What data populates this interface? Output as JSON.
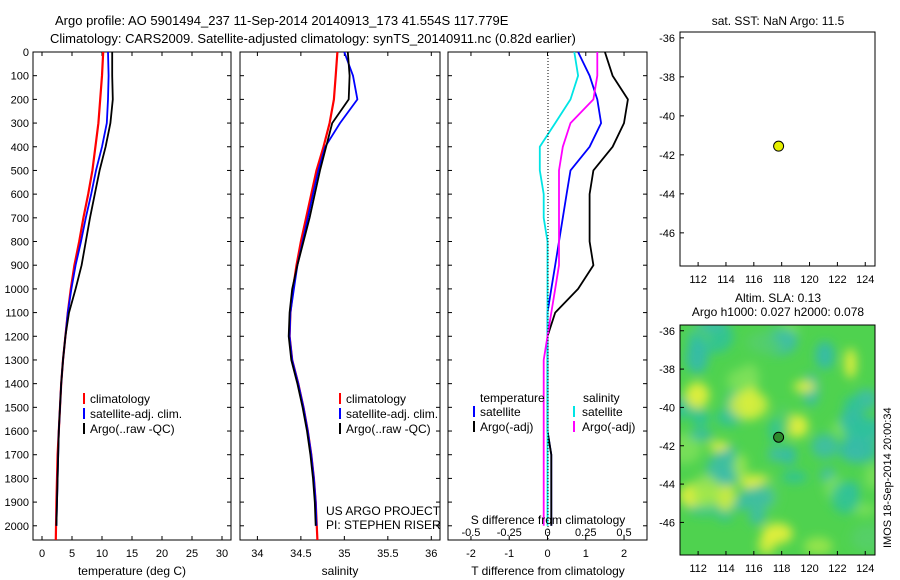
{
  "header": {
    "line1": "Argo profile: AO 5901494_237 11-Sep-2014 20140913_173 41.554S 117.779E",
    "line2": "Climatology: CARS2009. Satellite-adjusted climatology: synTS_20140911.nc (0.82d earlier)"
  },
  "colors": {
    "climatology": "#ff0000",
    "satellite": "#0000ff",
    "argo": "#000000",
    "satellite_s": "#00e5e5",
    "argo_s": "#ff00ff",
    "map_dot": "#e6f000",
    "sla_dot": "#2d8a2d"
  },
  "legend_profile": [
    "climatology",
    "satellite-adj. clim.",
    "Argo(..raw -QC)"
  ],
  "legend_diff": {
    "temperature": "temperature",
    "salinity": "salinity",
    "t_sat": "satellite",
    "t_argo": "Argo(-adj)",
    "s_sat": "satellite",
    "s_argo": "Argo(-adj)"
  },
  "credit": {
    "line1": "US ARGO PROJECT",
    "line2": "PI: STEPHEN RISER"
  },
  "sst_title": "sat. SST: NaN Argo: 11.5",
  "sla_title1": "Altim. SLA: 0.13",
  "sla_title2": "Argo h1000: 0.027 h2000: 0.078",
  "sla_timestamp": "IMOS 18-Sep-2014 20:00:34",
  "chart_data": [
    {
      "type": "line",
      "id": "temperature",
      "xlabel": "temperature (deg C)",
      "ylabel": "",
      "xlim": [
        -1.5,
        31.5
      ],
      "ylim": [
        2060,
        0
      ],
      "y_reversed": true,
      "xticks": [
        0,
        5,
        10,
        15,
        20,
        25,
        30
      ],
      "yticks": [
        0,
        100,
        200,
        300,
        400,
        500,
        600,
        700,
        800,
        900,
        1000,
        1100,
        1200,
        1300,
        1400,
        1500,
        1600,
        1700,
        1800,
        1900,
        2000
      ],
      "series": [
        {
          "name": "climatology",
          "x": [
            10.2,
            10.0,
            9.7,
            9.4,
            8.9,
            8.4,
            7.7,
            6.9,
            6.2,
            5.4,
            4.8,
            4.3,
            3.9,
            3.5,
            3.2,
            3.0,
            2.8,
            2.6,
            2.5,
            2.4,
            2.3
          ],
          "y": [
            0,
            100,
            200,
            300,
            400,
            500,
            600,
            700,
            800,
            900,
            1000,
            1100,
            1200,
            1300,
            1400,
            1500,
            1600,
            1700,
            1800,
            1900,
            2060
          ]
        },
        {
          "name": "satellite-adj. clim.",
          "x": [
            11.0,
            11.1,
            11.0,
            10.8,
            10.0,
            9.0,
            8.2,
            7.3,
            6.5,
            5.6,
            4.9,
            4.3,
            3.9,
            3.5,
            3.2,
            3.0,
            2.8,
            2.7,
            2.6,
            2.5,
            2.4
          ],
          "y": [
            0,
            100,
            200,
            300,
            400,
            500,
            600,
            700,
            800,
            900,
            1000,
            1100,
            1200,
            1300,
            1400,
            1500,
            1600,
            1700,
            1800,
            1900,
            2000
          ]
        },
        {
          "name": "Argo(..raw -QC)",
          "x": [
            11.7,
            11.7,
            11.8,
            11.4,
            10.6,
            9.6,
            8.8,
            8.0,
            7.3,
            6.6,
            5.6,
            4.5,
            3.9,
            3.5,
            3.2,
            3.0,
            2.8,
            2.7,
            2.6,
            2.5,
            2.4
          ],
          "y": [
            0,
            100,
            200,
            300,
            400,
            500,
            600,
            700,
            800,
            900,
            1000,
            1100,
            1200,
            1300,
            1400,
            1500,
            1600,
            1700,
            1800,
            1900,
            2000
          ]
        }
      ]
    },
    {
      "type": "line",
      "id": "salinity",
      "xlabel": "salinity",
      "ylabel": "",
      "xlim": [
        33.8,
        36.1
      ],
      "ylim": [
        2060,
        0
      ],
      "y_reversed": true,
      "xticks": [
        34,
        34.5,
        35,
        35.5,
        36
      ],
      "series": [
        {
          "name": "climatology",
          "x": [
            34.92,
            34.9,
            34.88,
            34.83,
            34.76,
            34.68,
            34.62,
            34.56,
            34.5,
            34.45,
            34.41,
            34.38,
            34.37,
            34.4,
            34.47,
            34.53,
            34.58,
            34.62,
            34.65,
            34.67,
            34.69
          ],
          "y": [
            0,
            100,
            200,
            300,
            400,
            500,
            600,
            700,
            800,
            900,
            1000,
            1100,
            1200,
            1300,
            1400,
            1500,
            1600,
            1700,
            1800,
            1900,
            2060
          ]
        },
        {
          "name": "satellite-adj. clim.",
          "x": [
            35.0,
            35.1,
            35.15,
            34.95,
            34.78,
            34.7,
            34.64,
            34.58,
            34.52,
            34.46,
            34.42,
            34.38,
            34.37,
            34.4,
            34.47,
            34.53,
            34.58,
            34.62,
            34.65,
            34.67,
            34.68
          ],
          "y": [
            0,
            100,
            200,
            300,
            400,
            500,
            600,
            700,
            800,
            900,
            1000,
            1100,
            1200,
            1300,
            1400,
            1500,
            1600,
            1700,
            1800,
            1900,
            2000
          ]
        },
        {
          "name": "Argo(..raw -QC)",
          "x": [
            35.04,
            35.06,
            35.05,
            34.86,
            34.79,
            34.72,
            34.66,
            34.6,
            34.53,
            34.46,
            34.4,
            34.37,
            34.36,
            34.39,
            34.46,
            34.52,
            34.57,
            34.61,
            34.64,
            34.66,
            34.67
          ],
          "y": [
            0,
            100,
            200,
            300,
            400,
            500,
            600,
            700,
            800,
            900,
            1000,
            1100,
            1200,
            1300,
            1400,
            1500,
            1600,
            1700,
            1800,
            1900,
            2000
          ]
        }
      ]
    },
    {
      "type": "line",
      "id": "difference",
      "xlabel": "T difference from climatology",
      "xlabel_top": "S difference from climatology",
      "xlim": [
        -2.6,
        2.6
      ],
      "ylim": [
        2060,
        0
      ],
      "y_reversed": true,
      "xticks": [
        -2,
        -1,
        0,
        1,
        2
      ],
      "s_xticks": [
        -0.5,
        -0.25,
        0,
        0.25,
        0.5
      ],
      "series": [
        {
          "name": "temperature satellite",
          "x": [
            0.8,
            1.1,
            1.3,
            1.4,
            1.1,
            0.6,
            0.5,
            0.4,
            0.3,
            0.2,
            0.1,
            0.0,
            0.0,
            0.0,
            0.0,
            0.0,
            0.0,
            0.1,
            0.1,
            0.1,
            0.1
          ],
          "y": [
            0,
            100,
            200,
            300,
            400,
            500,
            600,
            700,
            800,
            900,
            1000,
            1100,
            1200,
            1300,
            1400,
            1500,
            1600,
            1700,
            1800,
            1900,
            2000
          ]
        },
        {
          "name": "temperature Argo(-adj)",
          "x": [
            1.5,
            1.7,
            2.1,
            2.0,
            1.7,
            1.2,
            1.1,
            1.1,
            1.1,
            1.2,
            0.8,
            0.2,
            0.0,
            0.0,
            0.0,
            0.0,
            0.0,
            0.1,
            0.1,
            0.1,
            0.1
          ],
          "y": [
            0,
            100,
            200,
            300,
            400,
            500,
            600,
            700,
            800,
            900,
            1000,
            1100,
            1200,
            1300,
            1400,
            1500,
            1600,
            1700,
            1800,
            1900,
            2000
          ]
        },
        {
          "name": "salinity satellite",
          "x": [
            0.7,
            0.8,
            0.6,
            0.2,
            -0.2,
            -0.2,
            -0.1,
            -0.1,
            0.0,
            0.0,
            0.0,
            0.0,
            0.0,
            0.0,
            0.0,
            0.0,
            0.0,
            0.0,
            0.0,
            0.0,
            0.0
          ],
          "y": [
            0,
            100,
            200,
            300,
            400,
            500,
            600,
            700,
            800,
            900,
            1000,
            1100,
            1200,
            1300,
            1400,
            1500,
            1600,
            1700,
            1800,
            1900,
            2000
          ]
        },
        {
          "name": "salinity Argo(-adj)",
          "x": [
            1.3,
            1.3,
            1.2,
            0.6,
            0.4,
            0.3,
            0.3,
            0.3,
            0.3,
            0.3,
            0.2,
            0.1,
            0.0,
            -0.1,
            -0.1,
            -0.1,
            -0.1,
            -0.1,
            -0.1,
            -0.1,
            -0.1
          ],
          "y": [
            0,
            100,
            200,
            300,
            400,
            500,
            600,
            700,
            800,
            900,
            1000,
            1100,
            1200,
            1300,
            1400,
            1500,
            1600,
            1700,
            1800,
            1900,
            2000
          ]
        }
      ]
    },
    {
      "type": "scatter",
      "id": "sst_map",
      "title": "sat. SST: NaN Argo: 11.5",
      "xlim": [
        110.7,
        124.7
      ],
      "ylim": [
        -47.7,
        -35.7
      ],
      "xticks": [
        112,
        114,
        116,
        118,
        120,
        122,
        124
      ],
      "yticks": [
        -36,
        -38,
        -40,
        -42,
        -44,
        -46
      ],
      "points": [
        {
          "x": 117.779,
          "y": -41.554
        }
      ]
    },
    {
      "type": "heatmap",
      "id": "sla_map",
      "title": "Altim. SLA: 0.13 / Argo h1000: 0.027 h2000: 0.078",
      "xlim": [
        110.7,
        124.7
      ],
      "ylim": [
        -47.7,
        -35.7
      ],
      "xticks": [
        112,
        114,
        116,
        118,
        120,
        122,
        124
      ],
      "yticks": [
        -36,
        -38,
        -40,
        -42,
        -44,
        -46
      ],
      "points": [
        {
          "x": 117.779,
          "y": -41.554
        }
      ]
    }
  ]
}
